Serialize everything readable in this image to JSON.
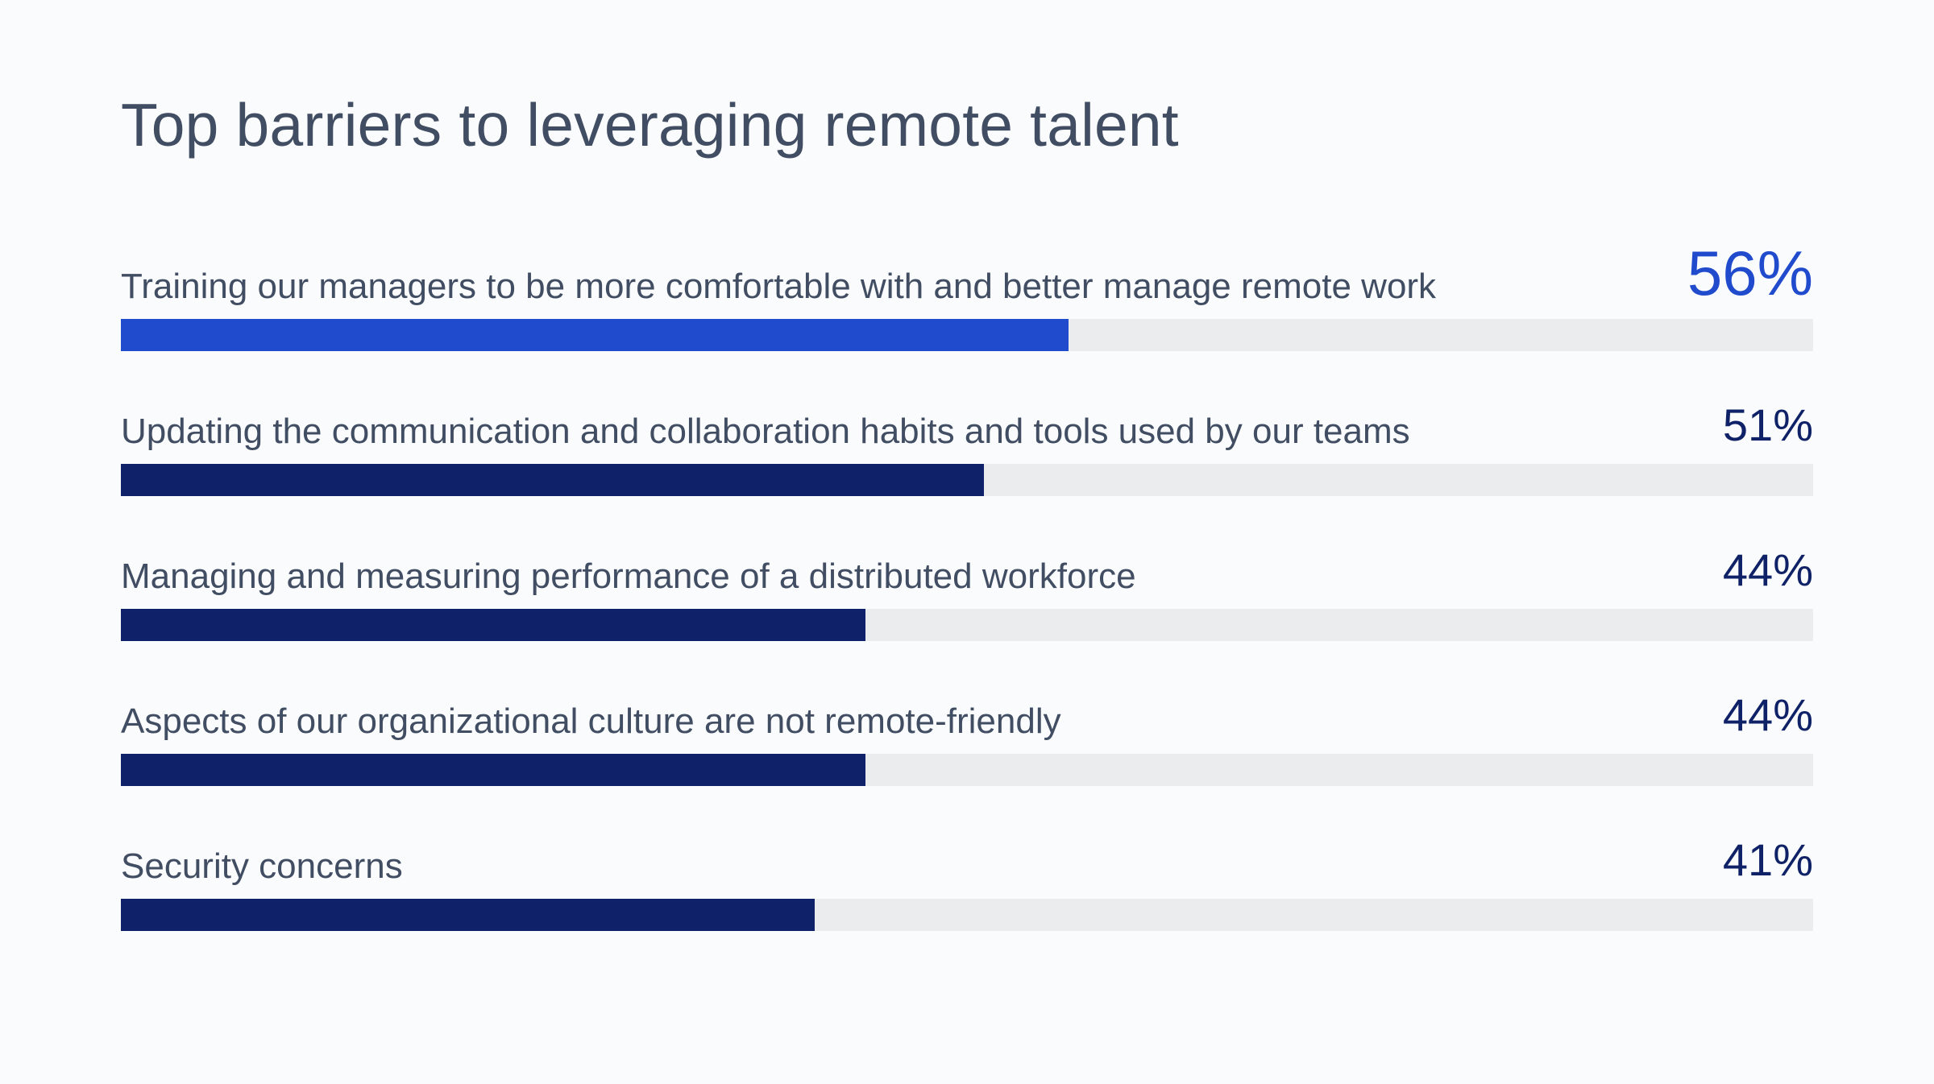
{
  "chart_data": {
    "type": "bar",
    "orientation": "horizontal",
    "title": "Top barriers to leveraging remote talent",
    "xlim": [
      0,
      100
    ],
    "grid": false,
    "legend": "none",
    "categories": [
      "Training our managers to be more comfortable with and better manage remote work",
      "Updating the communication and collaboration habits and tools used by our teams",
      "Managing and measuring performance of a distributed workforce",
      "Aspects of our organizational culture are not remote-friendly",
      "Security concerns"
    ],
    "values": [
      56,
      51,
      44,
      44,
      41
    ],
    "value_labels": [
      "56%",
      "51%",
      "44%",
      "44%",
      "41%"
    ],
    "highlight_index": 0,
    "colors": {
      "highlight": "#214bcd",
      "bar": "#0f2169",
      "track": "#ebecee",
      "highlight_label": "#214bcd",
      "label": "#0f2167",
      "text": "#414d62"
    }
  }
}
